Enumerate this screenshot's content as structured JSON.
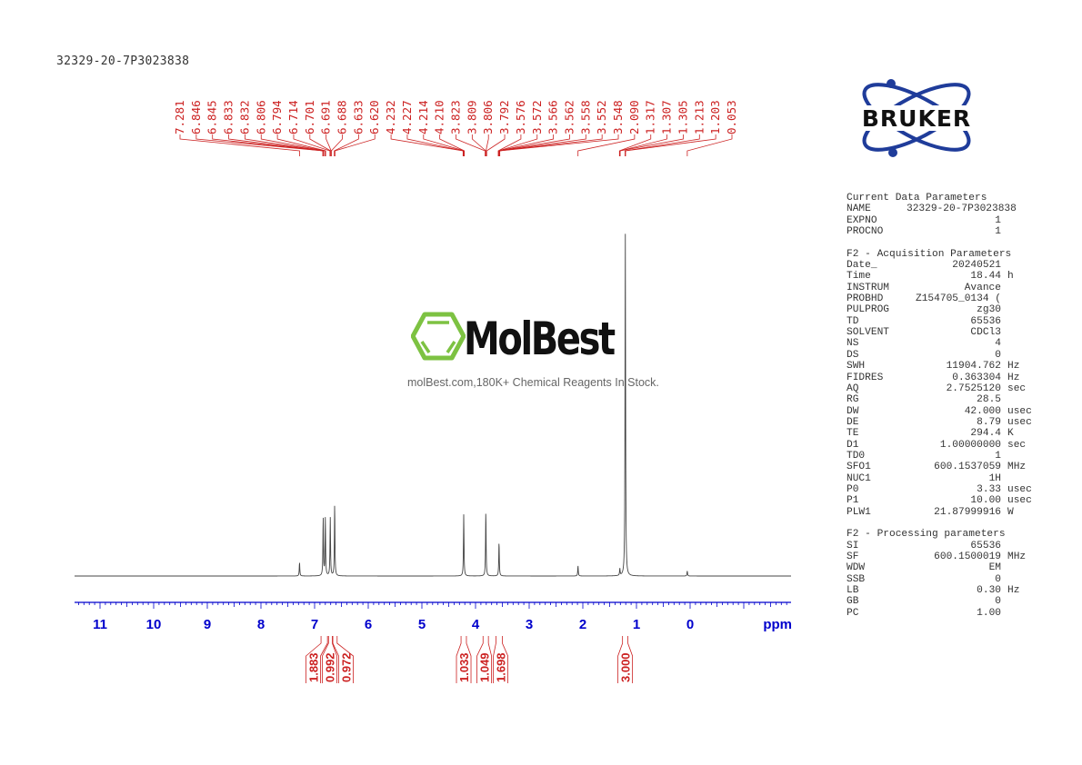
{
  "sample_title": "32329-20-7P3023838",
  "watermark": {
    "name": "MolBest",
    "subtitle": "molBest.com,180K+ Chemical Reagents In Stock.",
    "color": "#7dc242"
  },
  "logo": {
    "text": "BRUKER",
    "color": "#1f3c9a"
  },
  "chart_data": {
    "type": "line",
    "xlabel": "ppm",
    "xlim": [
      11.47,
      -1.88
    ],
    "x_ticks": [
      11,
      10,
      9,
      8,
      7,
      6,
      5,
      4,
      3,
      2,
      1,
      0
    ],
    "axis_color": "#0000cc",
    "label_color": "#cc2222",
    "peak_labels": [
      "7.281",
      "6.846",
      "6.845",
      "6.833",
      "6.832",
      "6.806",
      "6.794",
      "6.714",
      "6.701",
      "6.691",
      "6.688",
      "6.633",
      "6.620",
      "4.232",
      "4.227",
      "4.214",
      "4.210",
      "3.823",
      "3.809",
      "3.806",
      "3.792",
      "3.576",
      "3.572",
      "3.566",
      "3.562",
      "3.558",
      "3.552",
      "3.548",
      "2.090",
      "1.317",
      "1.307",
      "1.305",
      "1.213",
      "1.203",
      "0.053"
    ],
    "peaks": [
      {
        "ppm": 7.281,
        "intensity": 0.04
      },
      {
        "ppm": 6.84,
        "intensity": 0.17
      },
      {
        "ppm": 6.8,
        "intensity": 0.17
      },
      {
        "ppm": 6.708,
        "intensity": 0.17
      },
      {
        "ppm": 6.626,
        "intensity": 0.21
      },
      {
        "ppm": 4.22,
        "intensity": 0.18
      },
      {
        "ppm": 3.808,
        "intensity": 0.19
      },
      {
        "ppm": 3.562,
        "intensity": 0.1
      },
      {
        "ppm": 2.09,
        "intensity": 0.03
      },
      {
        "ppm": 1.31,
        "intensity": 0.02
      },
      {
        "ppm": 1.208,
        "intensity": 1.0
      },
      {
        "ppm": 0.053,
        "intensity": 0.015
      }
    ],
    "integrals": [
      {
        "label": "1.883",
        "from": 6.88,
        "to": 6.76
      },
      {
        "label": "0.992",
        "from": 6.74,
        "to": 6.67
      },
      {
        "label": "0.972",
        "from": 6.66,
        "to": 6.58
      },
      {
        "label": "1.033",
        "from": 4.27,
        "to": 4.17
      },
      {
        "label": "1.049",
        "from": 3.86,
        "to": 3.76
      },
      {
        "label": "1.698",
        "from": 3.62,
        "to": 3.5
      },
      {
        "label": "3.000",
        "from": 1.26,
        "to": 1.16
      }
    ]
  },
  "parameters": {
    "sections": [
      {
        "title": "Current Data Parameters",
        "rows": [
          [
            "NAME",
            "32329-20-7P3023838",
            ""
          ],
          [
            "EXPNO",
            "1",
            ""
          ],
          [
            "PROCNO",
            "1",
            ""
          ]
        ]
      },
      {
        "title": "F2 - Acquisition Parameters",
        "rows": [
          [
            "Date_",
            "20240521",
            ""
          ],
          [
            "Time",
            "18.44",
            "h"
          ],
          [
            "INSTRUM",
            "Avance",
            ""
          ],
          [
            "PROBHD",
            "Z154705_0134 (",
            ""
          ],
          [
            "PULPROG",
            "zg30",
            ""
          ],
          [
            "TD",
            "65536",
            ""
          ],
          [
            "SOLVENT",
            "CDCl3",
            ""
          ],
          [
            "NS",
            "4",
            ""
          ],
          [
            "DS",
            "0",
            ""
          ],
          [
            "SWH",
            "11904.762",
            "Hz"
          ],
          [
            "FIDRES",
            "0.363304",
            "Hz"
          ],
          [
            "AQ",
            "2.7525120",
            "sec"
          ],
          [
            "RG",
            "28.5",
            ""
          ],
          [
            "DW",
            "42.000",
            "usec"
          ],
          [
            "DE",
            "8.79",
            "usec"
          ],
          [
            "TE",
            "294.4",
            "K"
          ],
          [
            "D1",
            "1.00000000",
            "sec"
          ],
          [
            "TD0",
            "1",
            ""
          ],
          [
            "SFO1",
            "600.1537059",
            "MHz"
          ],
          [
            "NUC1",
            "1H",
            ""
          ],
          [
            "P0",
            "3.33",
            "usec"
          ],
          [
            "P1",
            "10.00",
            "usec"
          ],
          [
            "PLW1",
            "21.87999916",
            "W"
          ]
        ]
      },
      {
        "title": "F2 - Processing parameters",
        "rows": [
          [
            "SI",
            "65536",
            ""
          ],
          [
            "SF",
            "600.1500019",
            "MHz"
          ],
          [
            "WDW",
            "EM",
            ""
          ],
          [
            "SSB",
            "0",
            ""
          ],
          [
            "LB",
            "0.30",
            "Hz"
          ],
          [
            "GB",
            "0",
            ""
          ],
          [
            "PC",
            "1.00",
            ""
          ]
        ]
      }
    ]
  }
}
